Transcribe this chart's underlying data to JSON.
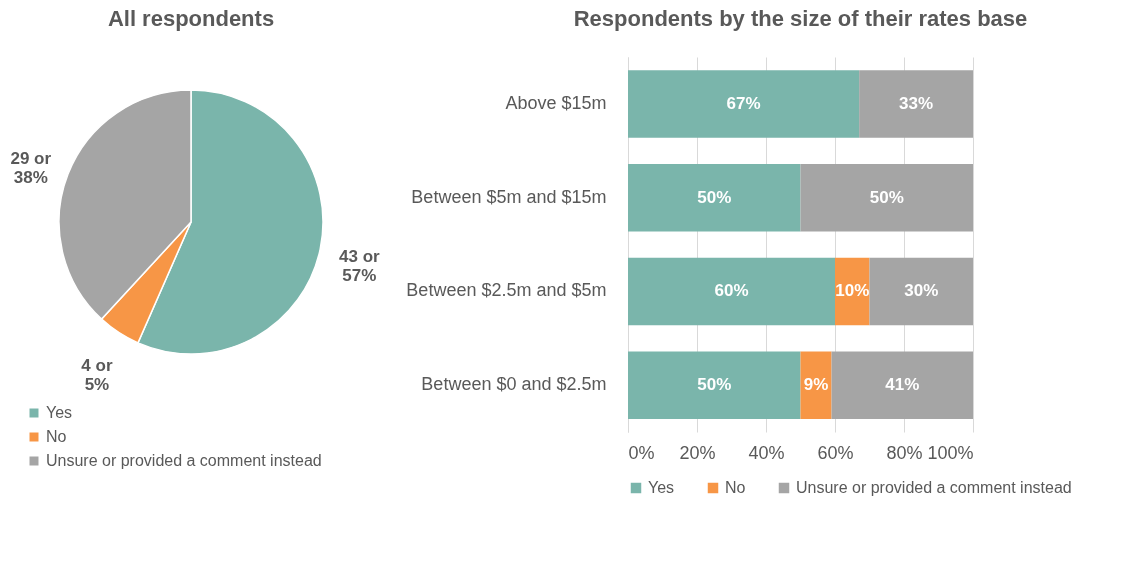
{
  "chart_data": [
    {
      "type": "pie",
      "title": "All respondents",
      "categories": [
        "Yes",
        "No",
        "Unsure or provided a comment instead"
      ],
      "values": [
        43,
        4,
        29
      ],
      "colors": [
        "#7ab5ab",
        "#f79646",
        "#a5a5a5"
      ],
      "value_labels": [
        "43 or\n57%",
        "4 or\n5%",
        "29 or\n38%"
      ],
      "legend": "bottom left"
    },
    {
      "type": "bar",
      "title": "Respondents by the size of their rates base",
      "orientation": "horizontal",
      "stacked": true,
      "categories": [
        "Above $15m",
        "Between $5m and $15m",
        "Between $2.5m and $5m",
        "Between $0 and $2.5m"
      ],
      "series": [
        {
          "name": "Yes",
          "color": "#7ab5ab",
          "values": [
            67,
            50,
            60,
            50
          ],
          "value_labels": [
            "67%",
            "50%",
            "60%",
            "50%"
          ]
        },
        {
          "name": "No",
          "color": "#f79646",
          "values": [
            null,
            null,
            10,
            9
          ],
          "value_labels": [
            null,
            null,
            "10%",
            "9%"
          ]
        },
        {
          "name": "Unsure or provided a comment instead",
          "color": "#a5a5a5",
          "values": [
            33,
            50,
            30,
            41
          ],
          "value_labels": [
            "33%",
            "50%",
            "30%",
            "41%"
          ]
        }
      ],
      "xlim": [
        0,
        100
      ],
      "xticks": [
        {
          "value": 0,
          "label": "0%"
        },
        {
          "value": 20,
          "label": "20%"
        },
        {
          "value": 40,
          "label": "40%"
        },
        {
          "value": 60,
          "label": "60%"
        },
        {
          "value": 80,
          "label": "80%"
        },
        {
          "value": 100,
          "label": "100%"
        }
      ],
      "grid": "x",
      "legend": "bottom"
    }
  ]
}
